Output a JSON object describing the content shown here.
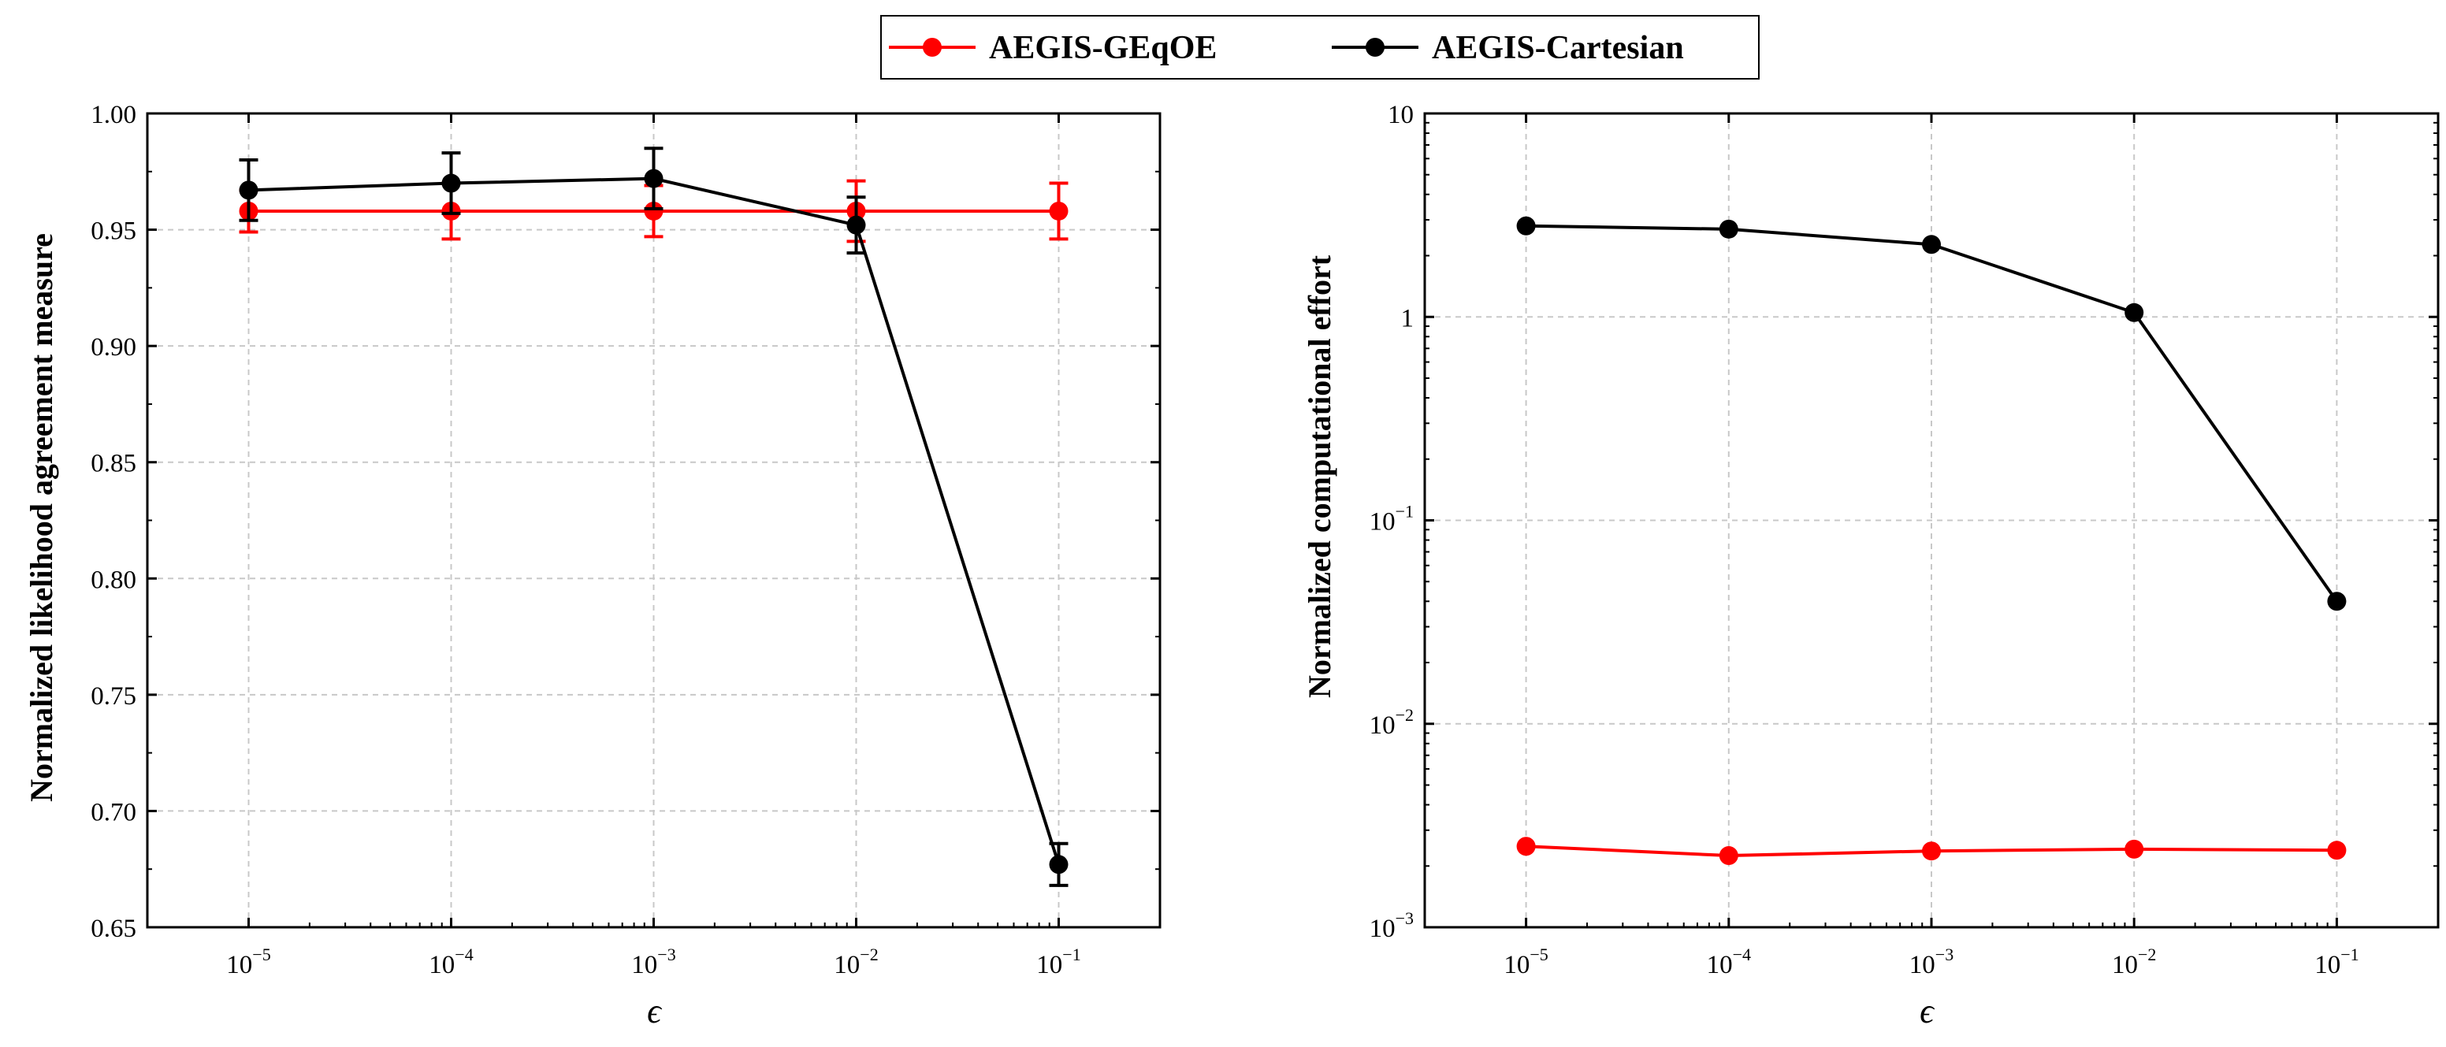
{
  "legend": {
    "placement": "top-center",
    "entries": [
      {
        "name": "AEGIS-GEqOE",
        "color": "#ff0000"
      },
      {
        "name": "AEGIS-Cartesian",
        "color": "#000000"
      }
    ]
  },
  "chart_data": [
    {
      "type": "line",
      "xscale": "log",
      "x": [
        1e-05,
        0.0001,
        0.001,
        0.01,
        0.1
      ],
      "x_tick_base": [
        "10",
        "10",
        "10",
        "10",
        "10"
      ],
      "x_tick_exp": [
        "−5",
        "−4",
        "−3",
        "−2",
        "−1"
      ],
      "xlabel": "ϵ",
      "ylabel": "Normalized likelihood agreement measure",
      "ylim": [
        0.65,
        1.0
      ],
      "yticks": [
        0.65,
        0.7,
        0.75,
        0.8,
        0.85,
        0.9,
        0.95,
        1.0
      ],
      "ytick_labels": [
        "0.65",
        "0.70",
        "0.75",
        "0.80",
        "0.85",
        "0.90",
        "0.95",
        "1.00"
      ],
      "grid": true,
      "series": [
        {
          "name": "AEGIS-GEqOE",
          "color": "#ff0000",
          "values": [
            0.958,
            0.958,
            0.958,
            0.958,
            0.958
          ],
          "err": [
            0.009,
            0.012,
            0.011,
            0.013,
            0.012
          ]
        },
        {
          "name": "AEGIS-Cartesian",
          "color": "#000000",
          "values": [
            0.967,
            0.97,
            0.972,
            0.952,
            0.677
          ],
          "err": [
            0.013,
            0.013,
            0.013,
            0.012,
            0.009
          ]
        }
      ]
    },
    {
      "type": "line",
      "xscale": "log",
      "yscale": "log",
      "x": [
        1e-05,
        0.0001,
        0.001,
        0.01,
        0.1
      ],
      "x_tick_base": [
        "10",
        "10",
        "10",
        "10",
        "10"
      ],
      "x_tick_exp": [
        "−5",
        "−4",
        "−3",
        "−2",
        "−1"
      ],
      "xlabel": "ϵ",
      "ylabel": "Normalized computational effort",
      "ylim": [
        0.001,
        10
      ],
      "yticks": [
        0.001,
        0.01,
        0.1,
        1,
        10
      ],
      "ytick_base": [
        "10",
        "10",
        "10",
        "",
        ""
      ],
      "ytick_exp": [
        "−3",
        "−2",
        "−1",
        "",
        ""
      ],
      "ytick_plain": [
        "",
        "",
        "",
        "1",
        "10"
      ],
      "grid": true,
      "series": [
        {
          "name": "AEGIS-GEqOE",
          "color": "#ff0000",
          "values": [
            0.0025,
            0.00225,
            0.00237,
            0.00242,
            0.00239
          ]
        },
        {
          "name": "AEGIS-Cartesian",
          "color": "#000000",
          "values": [
            2.8,
            2.7,
            2.27,
            1.05,
            0.04
          ]
        }
      ]
    }
  ]
}
